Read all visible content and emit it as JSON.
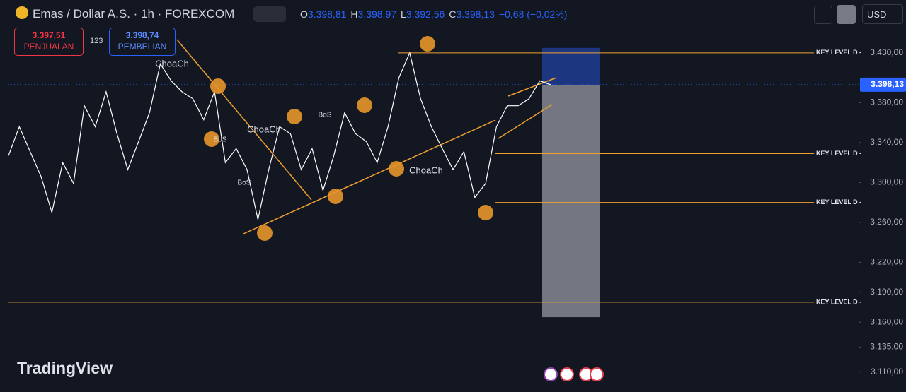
{
  "header": {
    "symbol": "Emas / Dollar A.S. · 1h · FOREXCOM",
    "ohlc": [
      "O",
      "3.398,81",
      "H",
      "3.398,97",
      "L",
      "3.392,56",
      "C",
      "3.398,13",
      "−0,68 (−0,02%)"
    ],
    "sell_price": "3.397,51",
    "sell_label": "PENJUALAN",
    "quantity": "123",
    "buy_price": "3.398,74",
    "buy_label": "PEMBELIAN",
    "currency": "USD"
  },
  "brand": "TradingView",
  "chart_data": {
    "type": "line",
    "color": "#ffffff",
    "values": [
      3327,
      3356,
      3331,
      3306,
      3270,
      3320,
      3299,
      3377,
      3356,
      3391,
      3349,
      3313,
      3341,
      3370,
      3419,
      3402,
      3391,
      3384,
      3363,
      3391,
      3320,
      3334,
      3313,
      3263,
      3313,
      3356,
      3349,
      3313,
      3334,
      3292,
      3327,
      3370,
      3349,
      3341,
      3320,
      3356,
      3405,
      3430,
      3384,
      3356,
      3334,
      3313,
      3331,
      3285,
      3299,
      3356,
      3377,
      3377,
      3384,
      3402,
      3398
    ],
    "ylim": [
      3090,
      3483
    ],
    "yticks": [
      {
        "value": 3430,
        "label": "3.430,00"
      },
      {
        "value": 3380,
        "label": "3.380,00"
      },
      {
        "value": 3340,
        "label": "3.340,00"
      },
      {
        "value": 3300,
        "label": "3.300,00"
      },
      {
        "value": 3260,
        "label": "3.260,00"
      },
      {
        "value": 3220,
        "label": "3.220,00"
      },
      {
        "value": 3190,
        "label": "3.190,00"
      },
      {
        "value": 3160,
        "label": "3.160,00"
      },
      {
        "value": 3135,
        "label": "3.135,00"
      },
      {
        "value": 3110,
        "label": "3.110,00"
      }
    ],
    "last_price": {
      "value": 3398.13,
      "label": "3.398,13"
    },
    "key_levels": [
      {
        "value": 3430,
        "label": "KEY LEVEL D -"
      },
      {
        "value": 3329,
        "label": "KEY LEVEL D -"
      },
      {
        "value": 3280,
        "label": "KEY LEVEL D -"
      },
      {
        "value": 3180,
        "label": "KEY LEVEL D -"
      }
    ],
    "position": {
      "target": 3435,
      "entry": 3398,
      "stop": 3165
    },
    "annotations": [
      "ChoaCh",
      "ChoaCh",
      "ChoaCh",
      "BoS",
      "BoS",
      "BoS"
    ]
  }
}
